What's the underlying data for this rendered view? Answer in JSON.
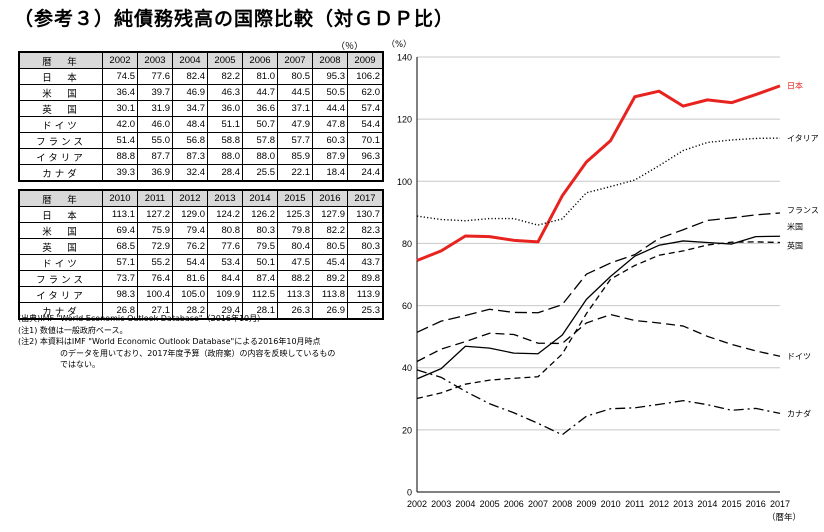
{
  "title": "（参考３）純債務残高の国際比較（対ＧＤＰ比）",
  "table_unit": "（％）",
  "table1": {
    "header": [
      "暦　年",
      "2002",
      "2003",
      "2004",
      "2005",
      "2006",
      "2007",
      "2008",
      "2009"
    ],
    "rows": [
      [
        "日　本",
        "74.5",
        "77.6",
        "82.4",
        "82.2",
        "81.0",
        "80.5",
        "95.3",
        "106.2"
      ],
      [
        "米　国",
        "36.4",
        "39.7",
        "46.9",
        "46.3",
        "44.7",
        "44.5",
        "50.5",
        "62.0"
      ],
      [
        "英　国",
        "30.1",
        "31.9",
        "34.7",
        "36.0",
        "36.6",
        "37.1",
        "44.4",
        "57.4"
      ],
      [
        "ドイツ",
        "42.0",
        "46.0",
        "48.4",
        "51.1",
        "50.7",
        "47.9",
        "47.8",
        "54.4"
      ],
      [
        "フランス",
        "51.4",
        "55.0",
        "56.8",
        "58.8",
        "57.8",
        "57.7",
        "60.3",
        "70.1"
      ],
      [
        "イタリア",
        "88.8",
        "87.7",
        "87.3",
        "88.0",
        "88.0",
        "85.9",
        "87.9",
        "96.3"
      ],
      [
        "カナダ",
        "39.3",
        "36.9",
        "32.4",
        "28.4",
        "25.5",
        "22.1",
        "18.4",
        "24.4"
      ]
    ]
  },
  "table2": {
    "header": [
      "暦　年",
      "2010",
      "2011",
      "2012",
      "2013",
      "2014",
      "2015",
      "2016",
      "2017"
    ],
    "rows": [
      [
        "日　本",
        "113.1",
        "127.2",
        "129.0",
        "124.2",
        "126.2",
        "125.3",
        "127.9",
        "130.7"
      ],
      [
        "米　国",
        "69.4",
        "75.9",
        "79.4",
        "80.8",
        "80.3",
        "79.8",
        "82.2",
        "82.3"
      ],
      [
        "英　国",
        "68.5",
        "72.9",
        "76.2",
        "77.6",
        "79.5",
        "80.4",
        "80.5",
        "80.3"
      ],
      [
        "ドイツ",
        "57.1",
        "55.2",
        "54.4",
        "53.4",
        "50.1",
        "47.5",
        "45.4",
        "43.7"
      ],
      [
        "フランス",
        "73.7",
        "76.4",
        "81.6",
        "84.4",
        "87.4",
        "88.2",
        "89.2",
        "89.8"
      ],
      [
        "イタリア",
        "98.3",
        "100.4",
        "105.0",
        "109.9",
        "112.5",
        "113.3",
        "113.8",
        "113.9"
      ],
      [
        "カナダ",
        "26.8",
        "27.1",
        "28.2",
        "29.4",
        "28.1",
        "26.3",
        "26.9",
        "25.3"
      ]
    ]
  },
  "notes": {
    "source": "(出典)IMF \"World Economic Outlook Database\"（2016年10月）",
    "note1": "(注1) 数値は一般政府ベース。",
    "note2_line1": "(注2) 本資料はIMF \"World Economic Outlook Database\"による2016年10月時点",
    "note2_line2": "のデータを用いており、2017年度予算（政府案）の内容を反映しているもの",
    "note2_line3": "ではない。"
  },
  "chart_data": {
    "type": "line",
    "y_unit": "（%）",
    "x_unit": "（暦年）",
    "x": [
      2002,
      2003,
      2004,
      2005,
      2006,
      2007,
      2008,
      2009,
      2010,
      2011,
      2012,
      2013,
      2014,
      2015,
      2016,
      2017
    ],
    "ylim": [
      0,
      140
    ],
    "yticks": [
      0,
      20,
      40,
      60,
      80,
      100,
      120,
      140
    ],
    "grid": true,
    "series": [
      {
        "name": "日本",
        "color": "#e8231f",
        "style": "solid-thick",
        "values": [
          74.5,
          77.6,
          82.4,
          82.2,
          81.0,
          80.5,
          95.3,
          106.2,
          113.1,
          127.2,
          129.0,
          124.2,
          126.2,
          125.3,
          127.9,
          130.7
        ]
      },
      {
        "name": "イタリア",
        "color": "#000000",
        "style": "dotted",
        "values": [
          88.8,
          87.7,
          87.3,
          88.0,
          88.0,
          85.9,
          87.9,
          96.3,
          98.3,
          100.4,
          105.0,
          109.9,
          112.5,
          113.3,
          113.8,
          113.9
        ]
      },
      {
        "name": "フランス",
        "color": "#000000",
        "style": "long-dash",
        "values": [
          51.4,
          55.0,
          56.8,
          58.8,
          57.8,
          57.7,
          60.3,
          70.1,
          73.7,
          76.4,
          81.6,
          84.4,
          87.4,
          88.2,
          89.2,
          89.8
        ]
      },
      {
        "name": "米国",
        "color": "#000000",
        "style": "solid",
        "values": [
          36.4,
          39.7,
          46.9,
          46.3,
          44.7,
          44.5,
          50.5,
          62.0,
          69.4,
          75.9,
          79.4,
          80.8,
          80.3,
          79.8,
          82.2,
          82.3
        ]
      },
      {
        "name": "英国",
        "color": "#000000",
        "style": "short-dash",
        "values": [
          30.1,
          31.9,
          34.7,
          36.0,
          36.6,
          37.1,
          44.4,
          57.4,
          68.5,
          72.9,
          76.2,
          77.6,
          79.5,
          80.4,
          80.5,
          80.3
        ]
      },
      {
        "name": "ドイツ",
        "color": "#000000",
        "style": "dash",
        "values": [
          42.0,
          46.0,
          48.4,
          51.1,
          50.7,
          47.9,
          47.8,
          54.4,
          57.1,
          55.2,
          54.4,
          53.4,
          50.1,
          47.5,
          45.4,
          43.7
        ]
      },
      {
        "name": "カナダ",
        "color": "#000000",
        "style": "dash-dot",
        "values": [
          39.3,
          36.9,
          32.4,
          28.4,
          25.5,
          22.1,
          18.4,
          24.4,
          26.8,
          27.1,
          28.2,
          29.4,
          28.1,
          26.3,
          26.9,
          25.3
        ]
      }
    ]
  }
}
